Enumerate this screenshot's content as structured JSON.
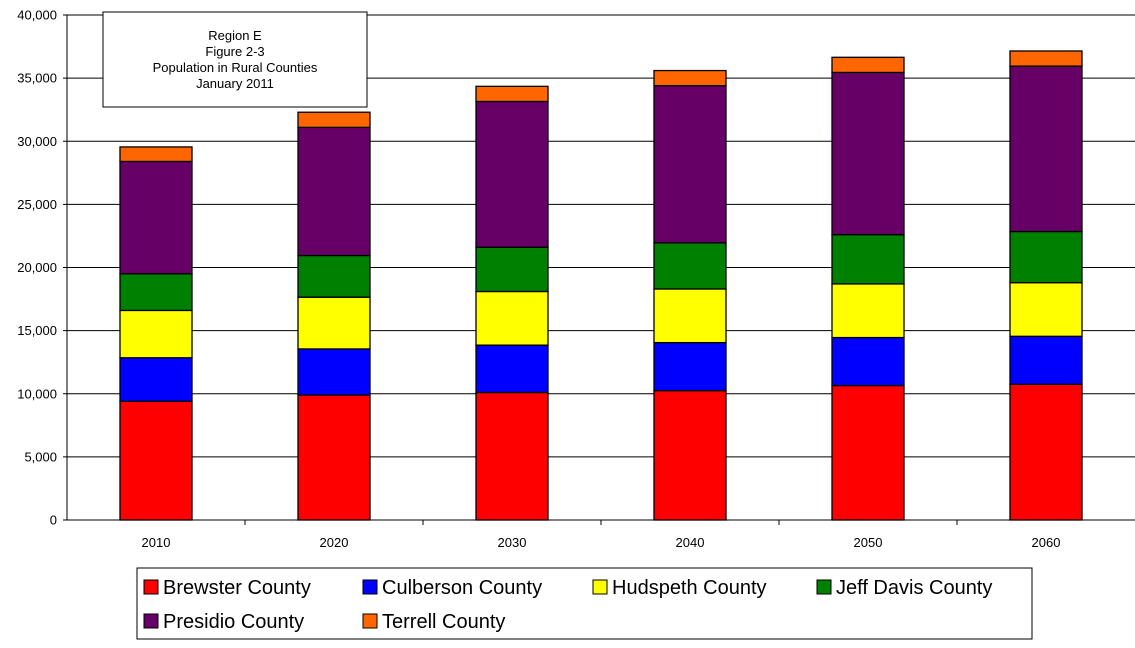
{
  "chart_data": {
    "type": "bar",
    "stacked": true,
    "title_lines": [
      "Region E",
      "Figure 2-3",
      "Population in Rural Counties",
      "January 2011"
    ],
    "xlabel": "",
    "ylabel": "",
    "categories": [
      "2010",
      "2020",
      "2030",
      "2040",
      "2050",
      "2060"
    ],
    "ylim": [
      0,
      40000
    ],
    "yticks": [
      0,
      5000,
      10000,
      15000,
      20000,
      25000,
      30000,
      35000,
      40000
    ],
    "ytick_labels": [
      "0",
      "5,000",
      "10,000",
      "15,000",
      "20,000",
      "25,000",
      "30,000",
      "35,000",
      "40,000"
    ],
    "grid": "horizontal",
    "legend_position": "bottom",
    "series": [
      {
        "name": "Brewster County",
        "color": "#ff0000",
        "values": [
          9400,
          9900,
          10100,
          10250,
          10650,
          10750
        ]
      },
      {
        "name": "Culberson County",
        "color": "#0000ff",
        "values": [
          3450,
          3650,
          3750,
          3800,
          3800,
          3800
        ]
      },
      {
        "name": "Hudspeth County",
        "color": "#ffff00",
        "values": [
          3750,
          4100,
          4250,
          4250,
          4250,
          4250
        ]
      },
      {
        "name": "Jeff Davis County",
        "color": "#008000",
        "values": [
          2900,
          3300,
          3500,
          3650,
          3900,
          4050
        ]
      },
      {
        "name": "Presidio County",
        "color": "#660066",
        "values": [
          8900,
          10150,
          11550,
          12450,
          12850,
          13100
        ]
      },
      {
        "name": "Terrell County",
        "color": "#ff6600",
        "values": [
          1150,
          1200,
          1200,
          1200,
          1200,
          1200
        ]
      }
    ]
  }
}
